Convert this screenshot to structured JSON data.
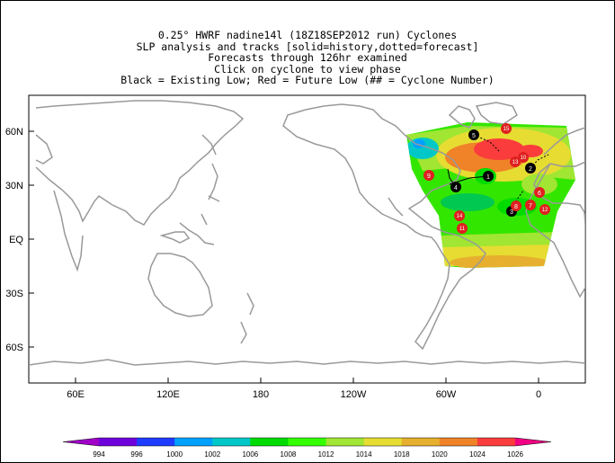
{
  "title_lines": [
    "0.25° HWRF nadine14l (18Z18SEP2012 run) Cyclones",
    "SLP analysis and tracks [solid=history,dotted=forecast]",
    "Forecasts through 126hr examined",
    "Click on cyclone to view phase",
    "Black = Existing Low; Red = Future Low (## = Cyclone Number)"
  ],
  "lat_labels": [
    "60N",
    "30N",
    "EQ",
    "30S",
    "60S"
  ],
  "lon_labels": [
    "60E",
    "120E",
    "180",
    "120W",
    "60W",
    "0"
  ],
  "colorbar": {
    "values": [
      "994",
      "996",
      "1000",
      "1002",
      "1006",
      "1008",
      "1012",
      "1014",
      "1018",
      "1020",
      "1024",
      "1026"
    ],
    "colors": [
      "#a000c8",
      "#6e00dc",
      "#1e3cff",
      "#00a0ff",
      "#00c8c8",
      "#00dc00",
      "#33ff00",
      "#a0e632",
      "#e6dc32",
      "#e6af2d",
      "#f08228",
      "#fa3c3c",
      "#f00082"
    ]
  },
  "cyclones": [
    {
      "id": "1",
      "type": "existing",
      "color": "#000000"
    },
    {
      "id": "2",
      "type": "existing",
      "color": "#000000"
    },
    {
      "id": "3",
      "type": "existing",
      "color": "#000000"
    },
    {
      "id": "4",
      "type": "existing",
      "color": "#000000"
    },
    {
      "id": "5",
      "type": "existing",
      "color": "#000000"
    },
    {
      "id": "6",
      "type": "future",
      "color": "#e02020"
    },
    {
      "id": "7",
      "type": "future",
      "color": "#e02020"
    },
    {
      "id": "8",
      "type": "future",
      "color": "#e02020"
    },
    {
      "id": "9",
      "type": "future",
      "color": "#e02020"
    },
    {
      "id": "10",
      "type": "future",
      "color": "#e02020"
    },
    {
      "id": "11",
      "type": "future",
      "color": "#e02020"
    },
    {
      "id": "12",
      "type": "future",
      "color": "#e02020"
    },
    {
      "id": "13",
      "type": "future",
      "color": "#e02020"
    },
    {
      "id": "14",
      "type": "future",
      "color": "#e02020"
    },
    {
      "id": "15",
      "type": "future",
      "color": "#e02020"
    }
  ]
}
